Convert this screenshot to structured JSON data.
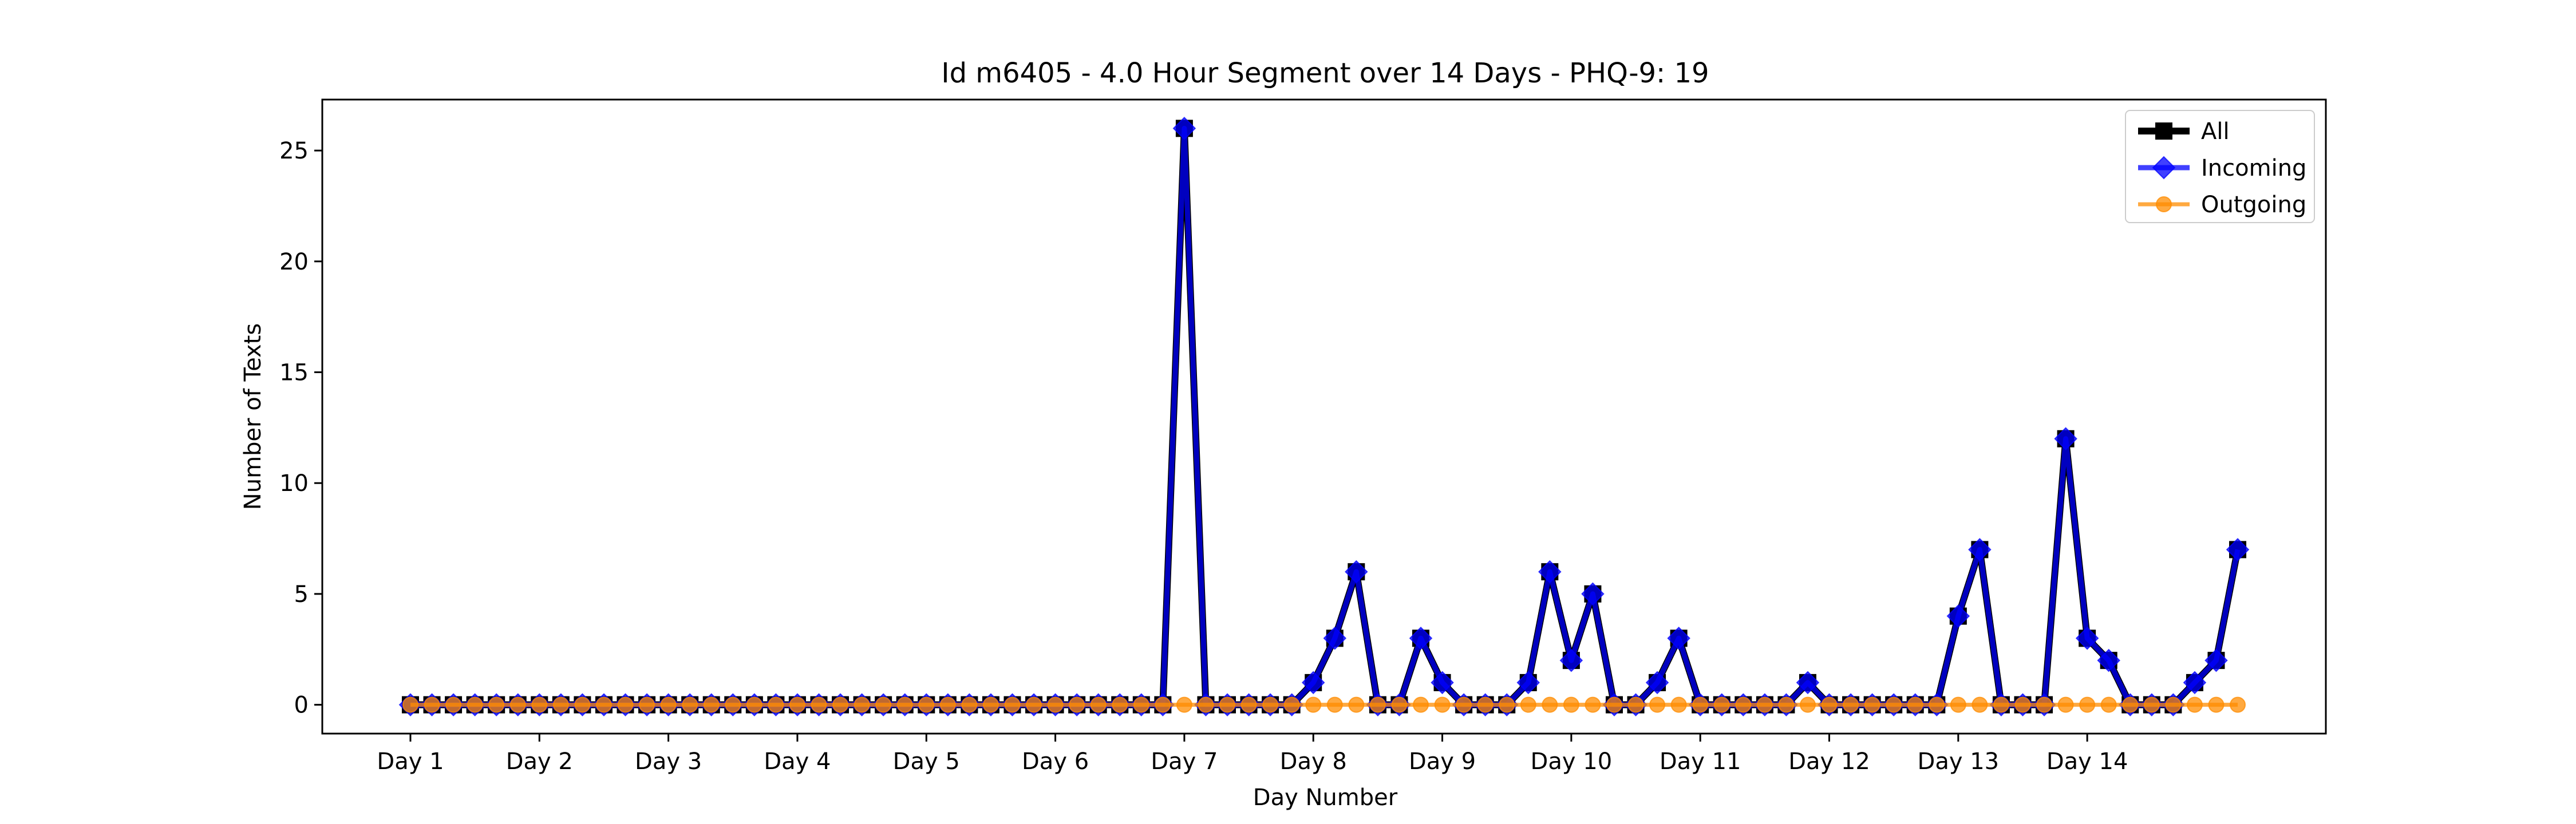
{
  "chart_data": {
    "type": "line",
    "title": "Id m6405 - 4.0 Hour Segment over 14 Days - PHQ-9: 19",
    "xlabel": "Day Number",
    "ylabel": "Number of Texts",
    "ylim": [
      -1.3,
      27.3
    ],
    "yticks": [
      0,
      5,
      10,
      15,
      20,
      25
    ],
    "xtick_labels": [
      "Day 1",
      "Day 2",
      "Day 3",
      "Day 4",
      "Day 5",
      "Day 6",
      "Day 7",
      "Day 8",
      "Day 9",
      "Day 10",
      "Day 11",
      "Day 12",
      "Day 13",
      "Day 14"
    ],
    "segments_per_day": 6,
    "grid": false,
    "legend_position": "top-right",
    "series": [
      {
        "name": "All",
        "color": "#000000",
        "marker": "square",
        "values": [
          0,
          0,
          0,
          0,
          0,
          0,
          0,
          0,
          0,
          0,
          0,
          0,
          0,
          0,
          0,
          0,
          0,
          0,
          0,
          0,
          0,
          0,
          0,
          0,
          0,
          0,
          0,
          0,
          0,
          0,
          0,
          0,
          0,
          0,
          0,
          0,
          26,
          0,
          0,
          0,
          0,
          0,
          1,
          3,
          6,
          0,
          0,
          3,
          1,
          0,
          0,
          0,
          1,
          6,
          2,
          5,
          0,
          0,
          1,
          3,
          0,
          0,
          0,
          0,
          0,
          1,
          0,
          0,
          0,
          0,
          0,
          0,
          4,
          7,
          0,
          0,
          0,
          12,
          3,
          2,
          0,
          0,
          0,
          1,
          2,
          7
        ]
      },
      {
        "name": "Incoming",
        "color": "#0000ff",
        "marker": "diamond",
        "values": [
          0,
          0,
          0,
          0,
          0,
          0,
          0,
          0,
          0,
          0,
          0,
          0,
          0,
          0,
          0,
          0,
          0,
          0,
          0,
          0,
          0,
          0,
          0,
          0,
          0,
          0,
          0,
          0,
          0,
          0,
          0,
          0,
          0,
          0,
          0,
          0,
          26,
          0,
          0,
          0,
          0,
          0,
          1,
          3,
          6,
          0,
          0,
          3,
          1,
          0,
          0,
          0,
          1,
          6,
          2,
          5,
          0,
          0,
          1,
          3,
          0,
          0,
          0,
          0,
          0,
          1,
          0,
          0,
          0,
          0,
          0,
          0,
          4,
          7,
          0,
          0,
          0,
          12,
          3,
          2,
          0,
          0,
          0,
          1,
          2,
          7
        ]
      },
      {
        "name": "Outgoing",
        "color": "#ff8c00",
        "marker": "circle",
        "values": [
          0,
          0,
          0,
          0,
          0,
          0,
          0,
          0,
          0,
          0,
          0,
          0,
          0,
          0,
          0,
          0,
          0,
          0,
          0,
          0,
          0,
          0,
          0,
          0,
          0,
          0,
          0,
          0,
          0,
          0,
          0,
          0,
          0,
          0,
          0,
          0,
          0,
          0,
          0,
          0,
          0,
          0,
          0,
          0,
          0,
          0,
          0,
          0,
          0,
          0,
          0,
          0,
          0,
          0,
          0,
          0,
          0,
          0,
          0,
          0,
          0,
          0,
          0,
          0,
          0,
          0,
          0,
          0,
          0,
          0,
          0,
          0,
          0,
          0,
          0,
          0,
          0,
          0,
          0,
          0,
          0,
          0,
          0,
          0,
          0,
          0
        ]
      }
    ]
  }
}
